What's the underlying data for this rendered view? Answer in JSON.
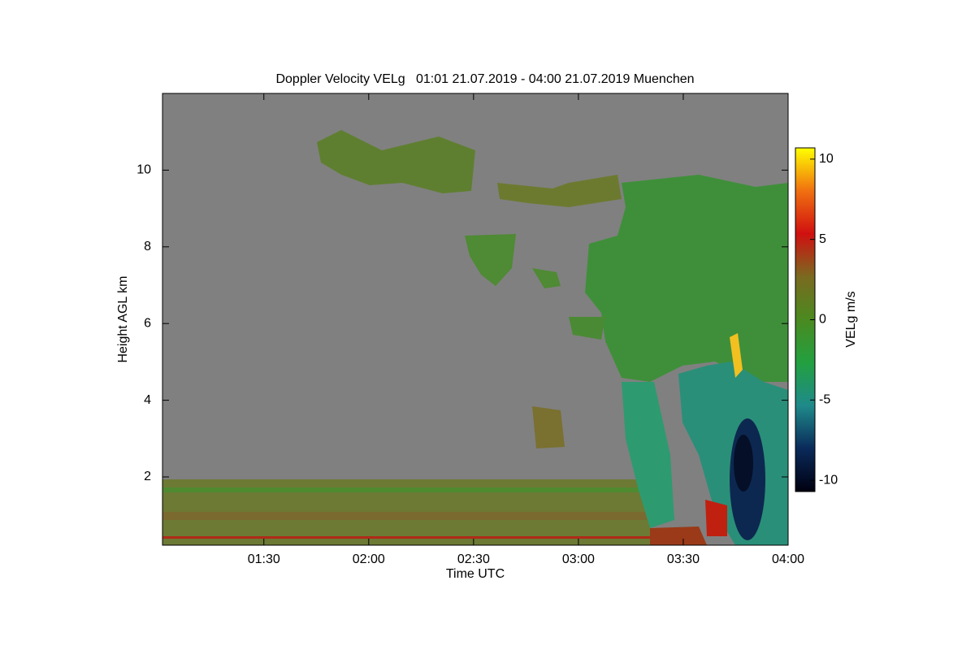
{
  "chart_data": {
    "type": "heatmap",
    "title": "Doppler Velocity VELg   01:01 21.07.2019 - 04:00 21.07.2019 Muenchen",
    "xlabel": "Time UTC",
    "ylabel": "Height AGL km",
    "colorbar_label": "VELg m/s",
    "xlim": [
      61,
      240
    ],
    "xticks": [
      {
        "value": 90,
        "label": "01:30"
      },
      {
        "value": 120,
        "label": "02:00"
      },
      {
        "value": 150,
        "label": "02:30"
      },
      {
        "value": 180,
        "label": "03:00"
      },
      {
        "value": 210,
        "label": "03:30"
      },
      {
        "value": 240,
        "label": "04:00"
      }
    ],
    "ylim": [
      0.22,
      12
    ],
    "yticks": [
      2,
      4,
      6,
      8,
      10
    ],
    "clim": [
      -10.7,
      10.7
    ],
    "cticks": [
      10,
      5,
      0,
      -5,
      -10
    ],
    "colormap": [
      "#000010",
      "#0a2a5a",
      "#1f8a8a",
      "#22a040",
      "#4a8a20",
      "#7a6a20",
      "#d01010",
      "#f07010",
      "#ffff00"
    ],
    "background": "#808080"
  }
}
